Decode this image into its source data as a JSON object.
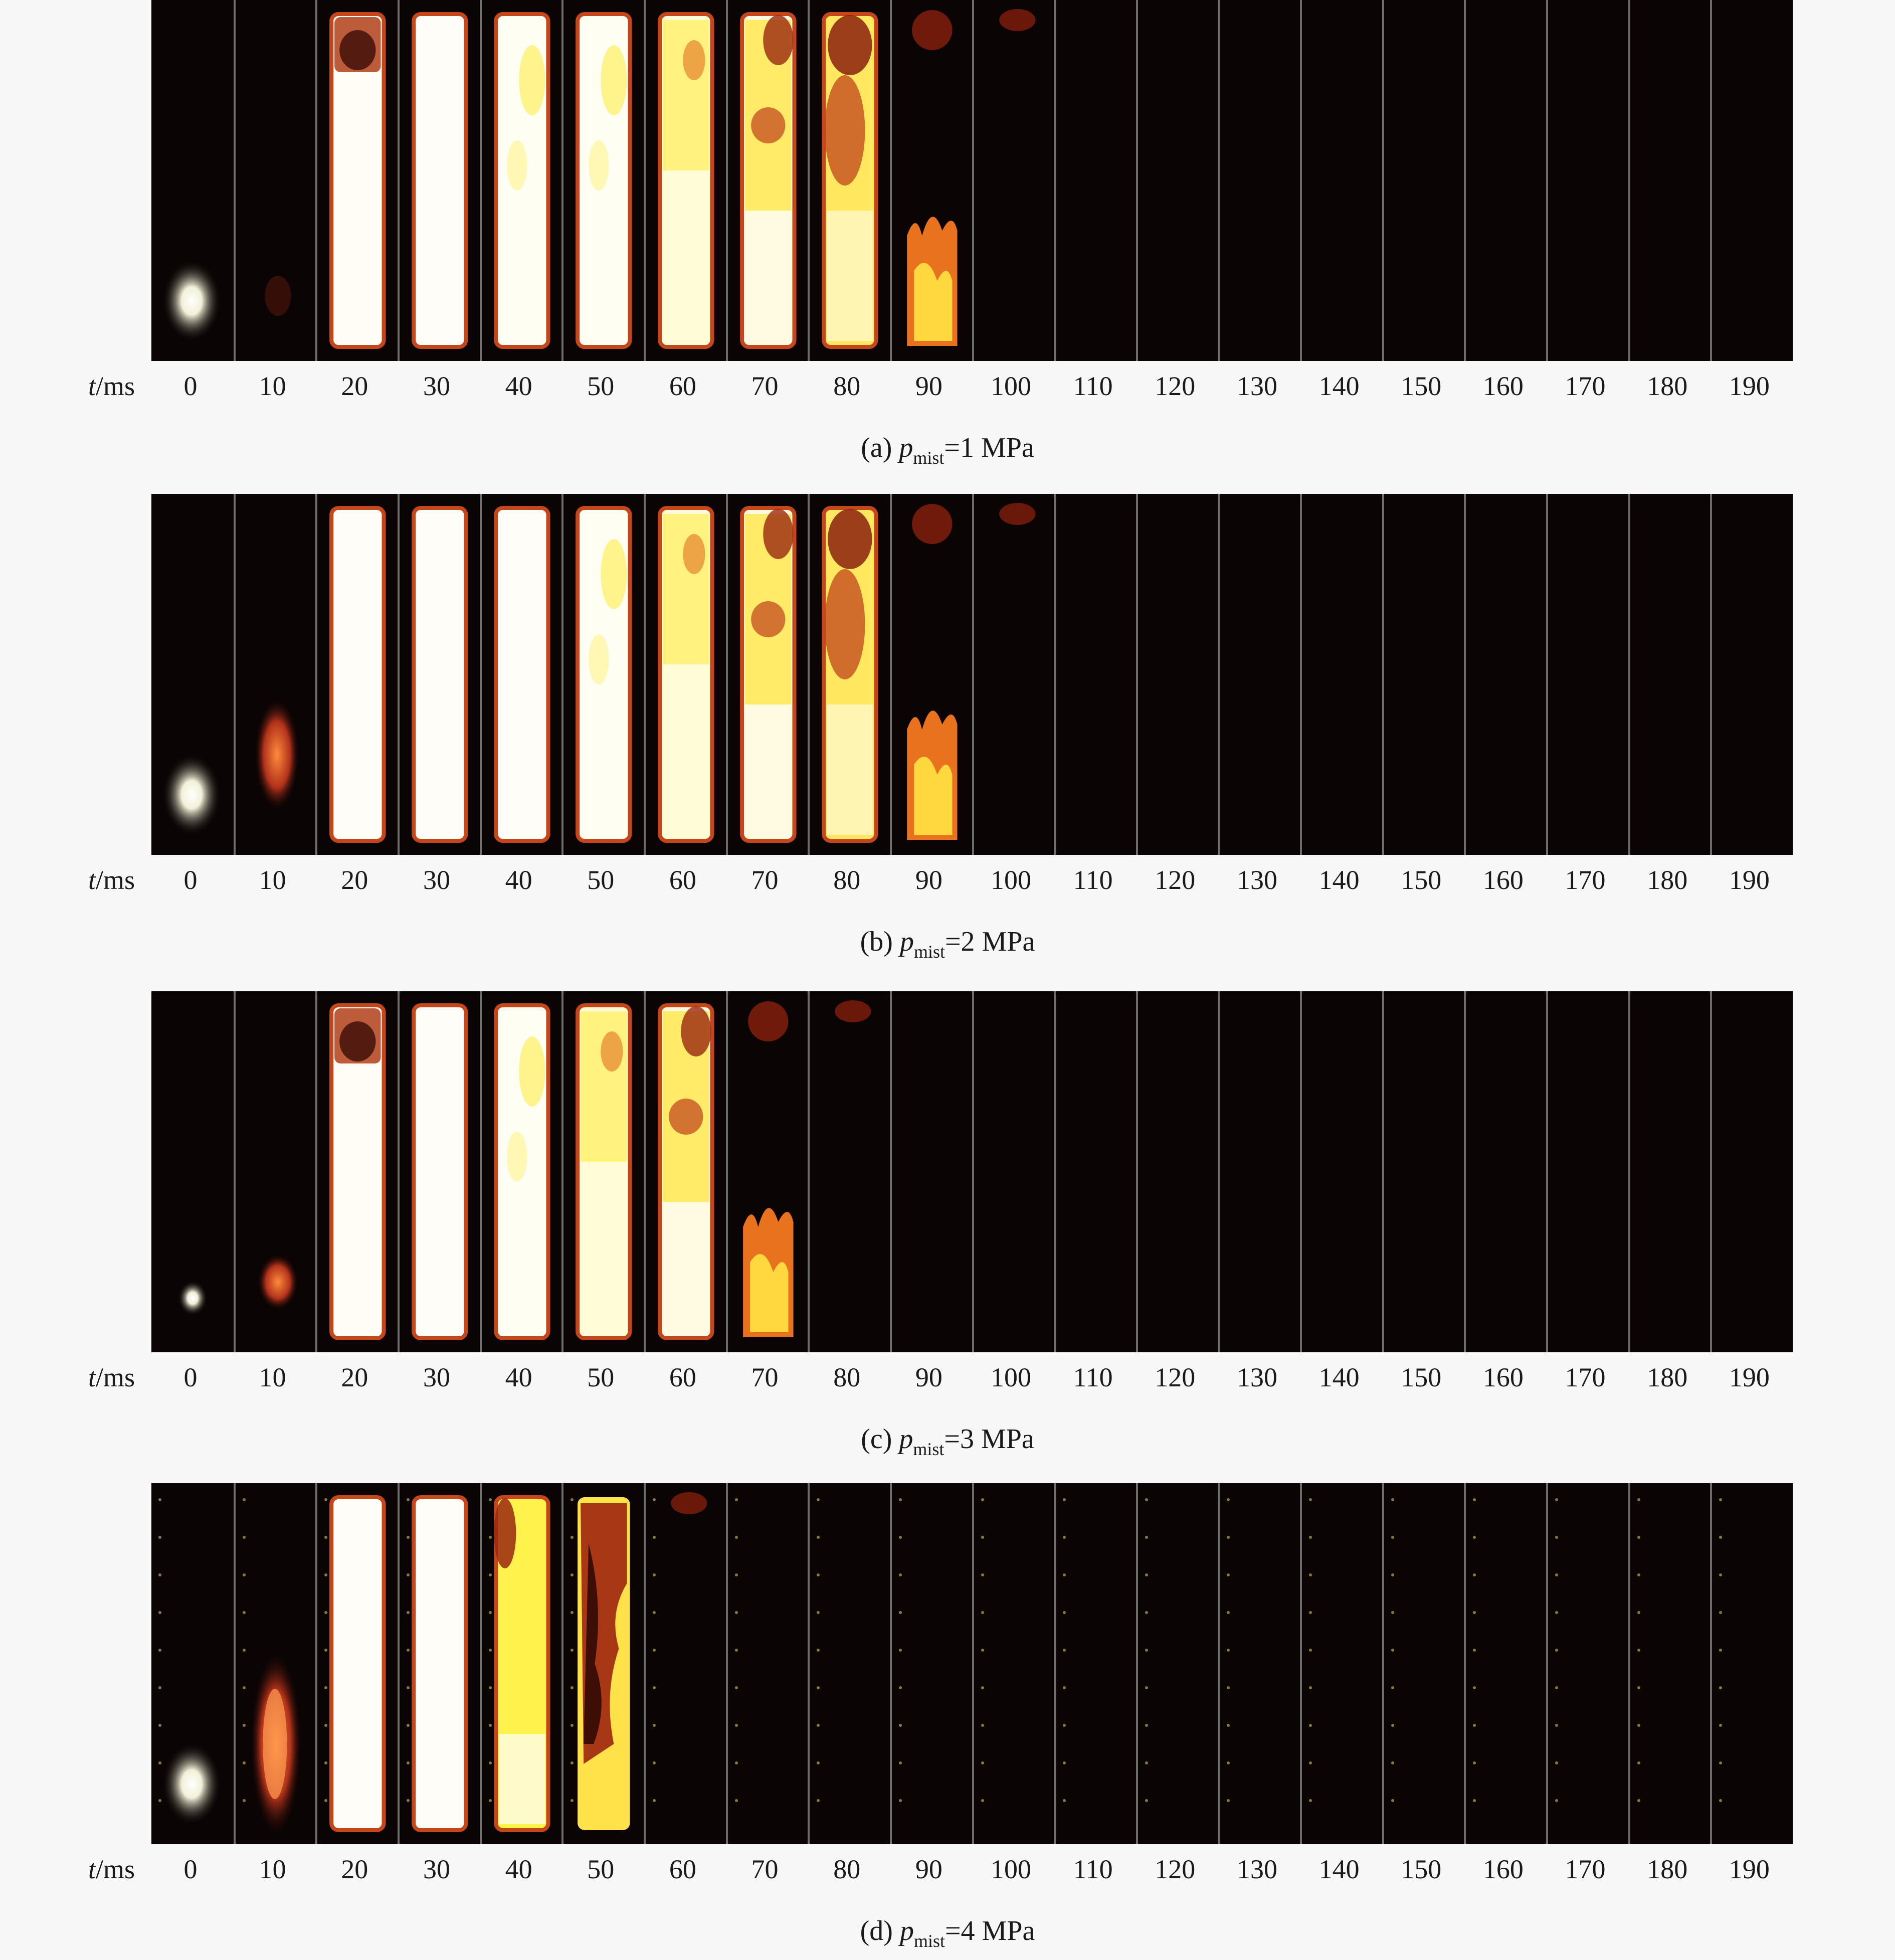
{
  "time_axis": {
    "label": "t",
    "unit": "/ms",
    "ticks": [
      "0",
      "10",
      "20",
      "30",
      "40",
      "50",
      "60",
      "70",
      "80",
      "90",
      "100",
      "110",
      "120",
      "130",
      "140",
      "150",
      "160",
      "170",
      "180",
      "190"
    ]
  },
  "panels": [
    {
      "id": "a",
      "caption_prefix": "(a) ",
      "symbol": "p",
      "subscript": "mist",
      "caption_suffix": "=1 MPa",
      "frames": [
        "spark",
        "faint",
        "bright-top-soot",
        "white",
        "white-yellow",
        "white-yellow",
        "yellow-white",
        "yellow-soot",
        "soot-yellow",
        "bottom-flame",
        "faint-top",
        "dark",
        "dark",
        "dark",
        "dark",
        "dark",
        "dark",
        "dark",
        "dark",
        "dark"
      ]
    },
    {
      "id": "b",
      "caption_prefix": "(b) ",
      "symbol": "p",
      "subscript": "mist",
      "caption_suffix": "=2 MPa",
      "frames": [
        "spark",
        "kernel",
        "white",
        "white",
        "white",
        "white-yellow",
        "yellow-white",
        "yellow-soot",
        "soot-yellow",
        "bottom-flame",
        "faint-top",
        "dark",
        "dark",
        "dark",
        "dark",
        "dark",
        "dark",
        "dark",
        "dark",
        "dark"
      ]
    },
    {
      "id": "c",
      "caption_prefix": "(c) ",
      "symbol": "p",
      "subscript": "mist",
      "caption_suffix": "=3 MPa",
      "frames": [
        "spark-small",
        "kernel-small",
        "white-top-soot",
        "white",
        "white-yellow",
        "yellow-white",
        "yellow-soot",
        "bottom-flame",
        "faint-top",
        "dark",
        "dark",
        "dark",
        "dark",
        "dark",
        "dark",
        "dark",
        "dark",
        "dark",
        "dark",
        "dark"
      ]
    },
    {
      "id": "d",
      "caption_prefix": "(d) ",
      "symbol": "p",
      "subscript": "mist",
      "caption_suffix": "=4 MPa",
      "frames": [
        "spark",
        "kernel-tall",
        "white",
        "white",
        "yellow-soot-top",
        "soot-heavy",
        "faint-top",
        "dark",
        "dark",
        "dark",
        "dark",
        "dark",
        "dark",
        "dark",
        "dark",
        "dark",
        "dark",
        "dark",
        "dark",
        "dark"
      ]
    }
  ]
}
